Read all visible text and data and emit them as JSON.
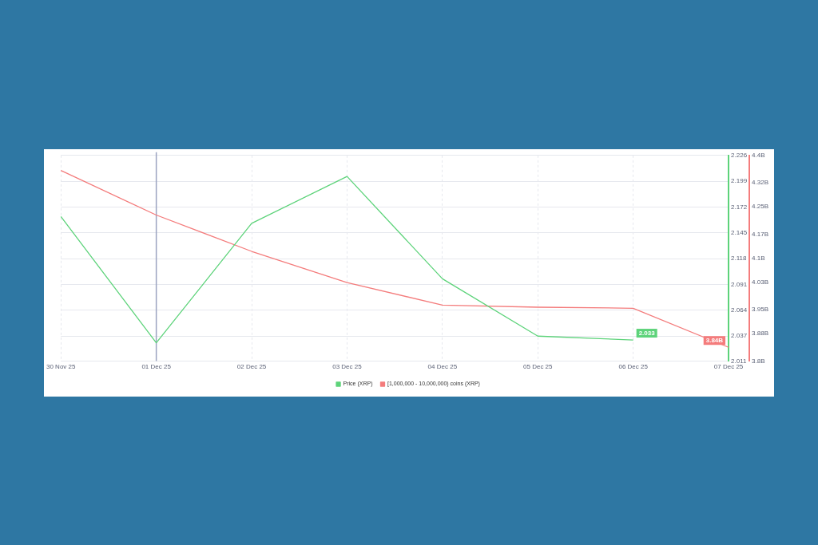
{
  "chart_data": {
    "type": "line",
    "categories": [
      "30 Nov 25",
      "01 Dec 25",
      "02 Dec 25",
      "03 Dec 25",
      "04 Dec 25",
      "05 Dec 25",
      "06 Dec 25",
      "07 Dec 25"
    ],
    "series": [
      {
        "name": "Price (XRP)",
        "color": "#5dd37a",
        "values": [
          2.162,
          2.03,
          2.155,
          2.204,
          2.097,
          2.037,
          2.033,
          null
        ],
        "value_labels": [
          null,
          null,
          null,
          null,
          null,
          null,
          "2.033",
          null
        ]
      },
      {
        "name": "[1,000,000 - 10,000,000) coins (XRP)",
        "color": "#f47c7c",
        "axis": "y2",
        "values": [
          4.356,
          4.226,
          4.12,
          4.029,
          3.963,
          3.957,
          3.954,
          3.84
        ],
        "value_labels": [
          null,
          null,
          null,
          null,
          null,
          null,
          null,
          "3.84B"
        ]
      }
    ],
    "ylim": [
      2.011,
      2.226
    ],
    "yticks": [
      2.011,
      2.037,
      2.064,
      2.091,
      2.118,
      2.145,
      2.172,
      2.199,
      2.226
    ],
    "y2lim": [
      3.8,
      4.4
    ],
    "y2ticks": [
      {
        "value": 3.8,
        "label": "3.8B"
      },
      {
        "value": 3.88,
        "label": "3.88B"
      },
      {
        "value": 3.95,
        "label": "3.95B"
      },
      {
        "value": 4.03,
        "label": "4.03B"
      },
      {
        "value": 4.1,
        "label": "4.1B"
      },
      {
        "value": 4.17,
        "label": "4.17B"
      },
      {
        "value": 4.25,
        "label": "4.25B"
      },
      {
        "value": 4.32,
        "label": "4.32B"
      },
      {
        "value": 4.4,
        "label": "4.4B"
      }
    ],
    "ref_lines": [
      {
        "axis": "x",
        "value": "01 Dec 25",
        "color": "#9aa3c0"
      }
    ],
    "grid": true,
    "legend": "bottom",
    "marker": "none",
    "line_style": "solid"
  }
}
